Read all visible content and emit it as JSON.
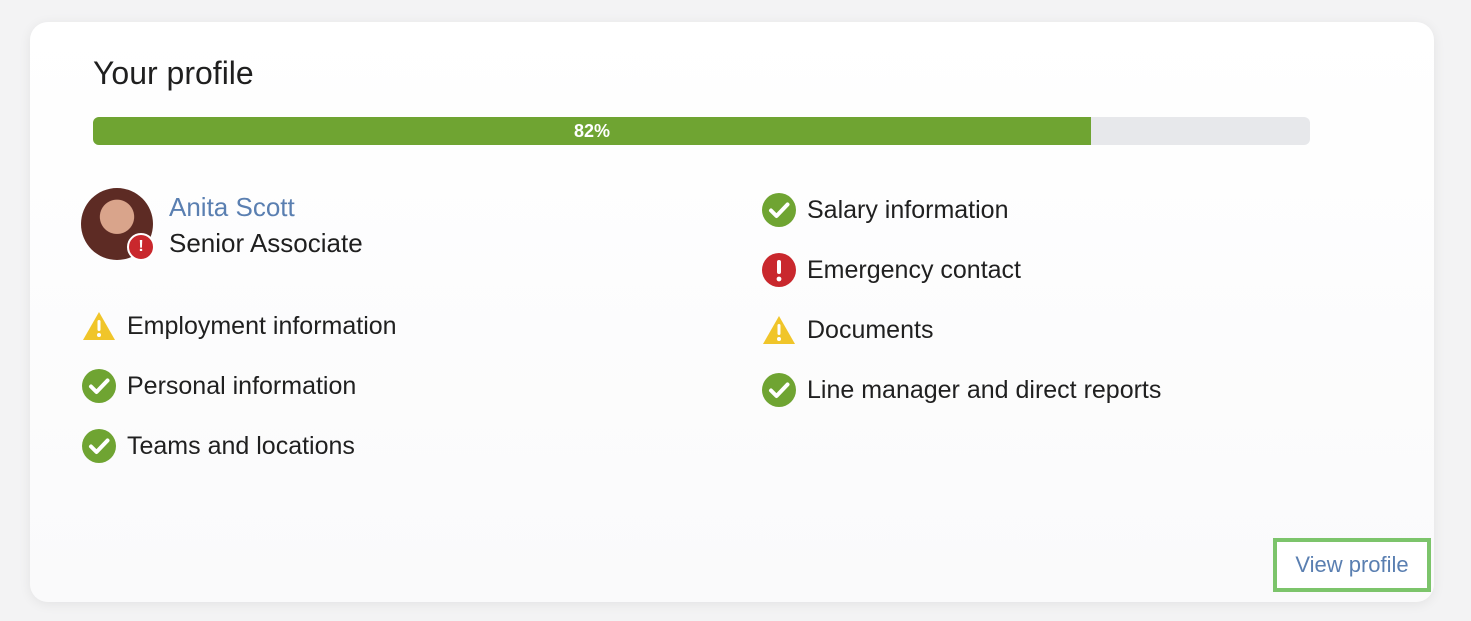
{
  "card": {
    "title": "Your profile",
    "progress": {
      "value": 82,
      "label": "82%",
      "colors": {
        "fill": "#6fa432",
        "track": "#e7e8eb"
      }
    },
    "user": {
      "name": "Anita Scott",
      "role": "Senior Associate"
    },
    "checklist": [
      {
        "label": "Employment information",
        "status": "warning",
        "icon": "warning-icon"
      },
      {
        "label": "Personal information",
        "status": "complete",
        "icon": "check-icon"
      },
      {
        "label": "Teams and locations",
        "status": "complete",
        "icon": "check-icon"
      },
      {
        "label": "Salary information",
        "status": "complete",
        "icon": "check-icon"
      },
      {
        "label": "Emergency contact",
        "status": "error",
        "icon": "error-icon"
      },
      {
        "label": "Documents",
        "status": "warning",
        "icon": "warning-icon"
      },
      {
        "label": "Line manager and direct reports",
        "status": "complete",
        "icon": "check-icon"
      }
    ],
    "actions": {
      "view_profile": "View profile"
    }
  }
}
